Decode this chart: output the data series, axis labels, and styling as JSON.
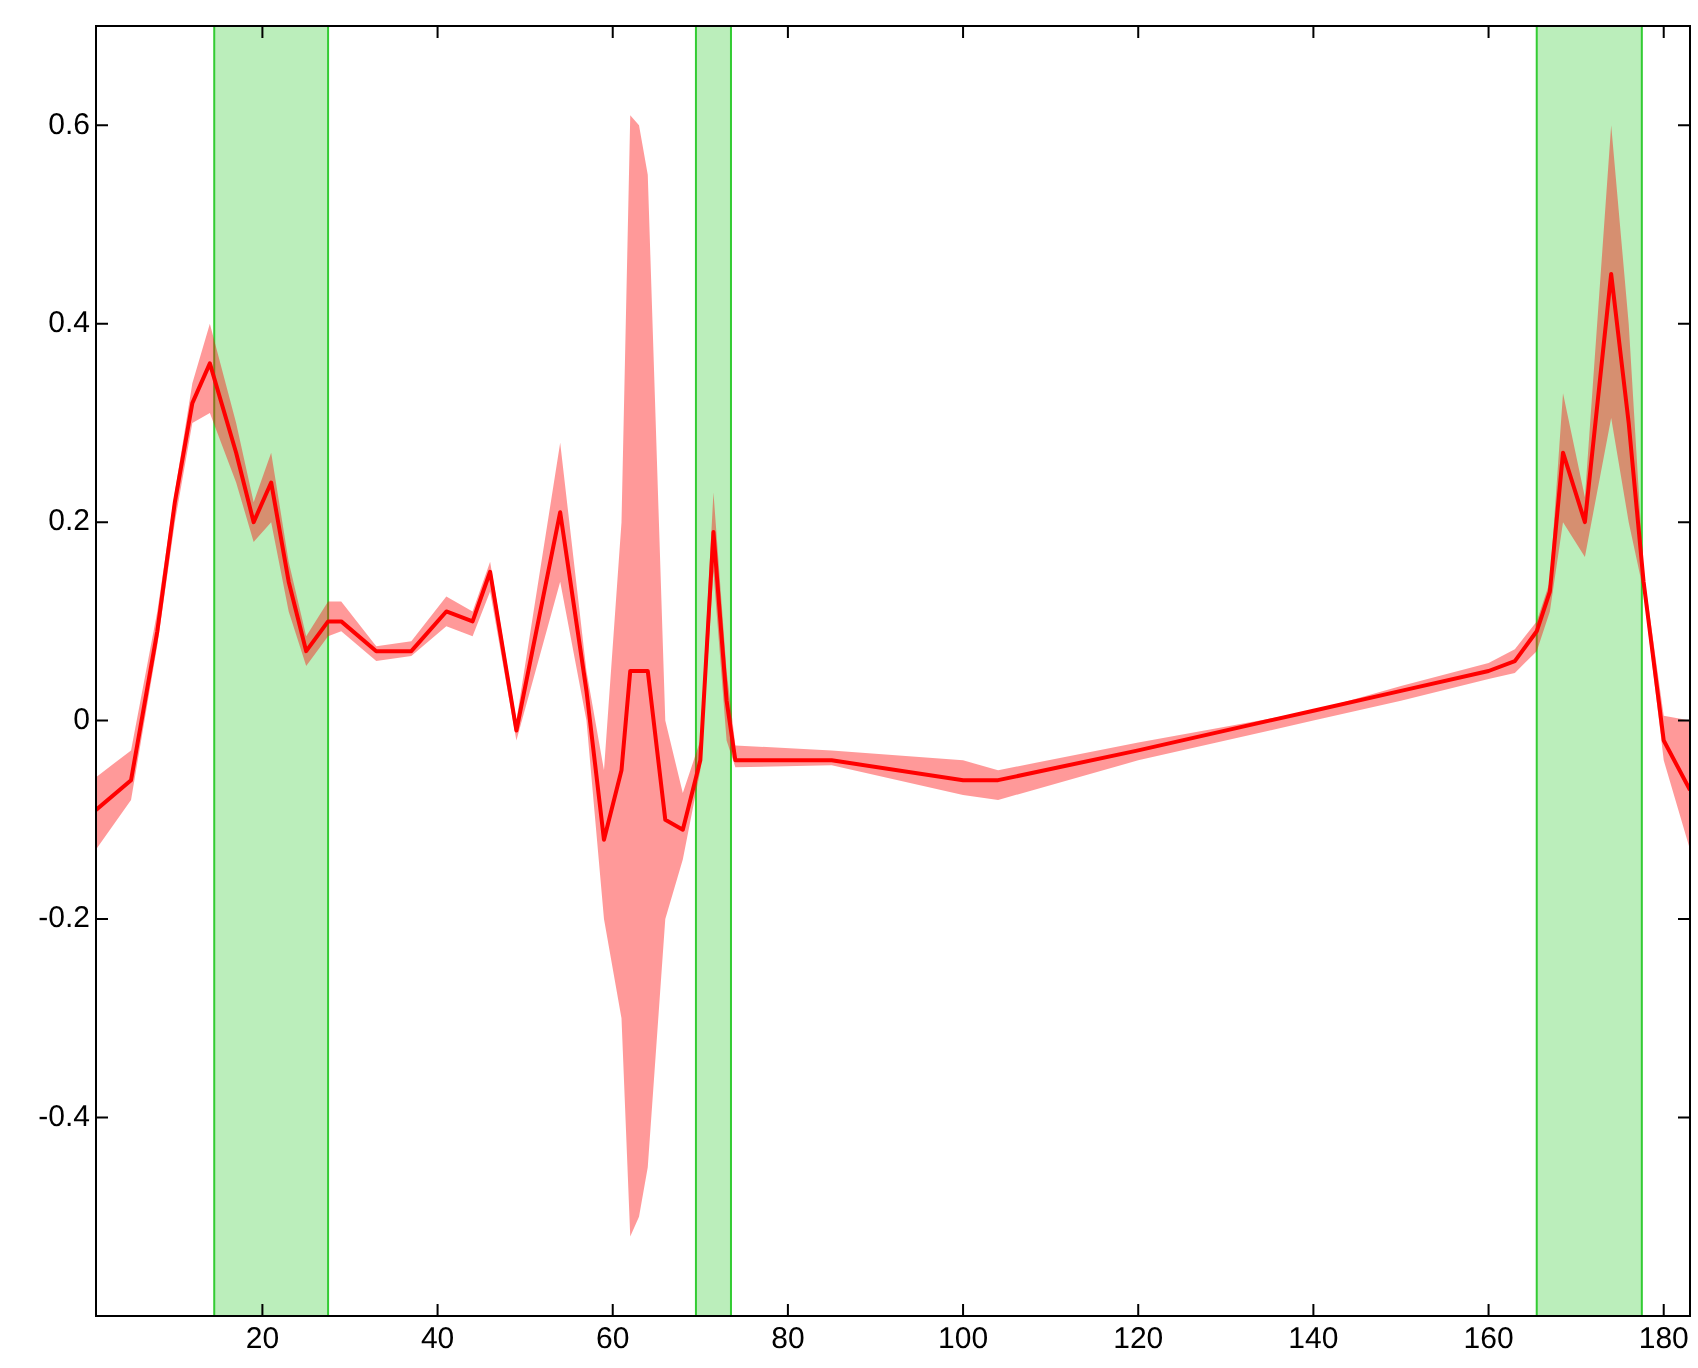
{
  "chart_data": {
    "type": "line",
    "x": [
      1,
      5,
      8,
      10,
      12,
      14,
      17,
      19,
      21,
      23,
      25,
      27.5,
      29,
      33,
      37,
      41,
      44,
      46,
      49,
      54,
      57,
      59,
      61,
      62,
      63,
      64,
      66,
      68,
      70,
      71.5,
      73,
      74,
      85,
      100,
      104,
      120,
      140,
      150,
      160,
      163,
      165.5,
      167,
      168.5,
      171,
      174,
      176,
      177.7,
      180,
      183
    ],
    "series": [
      {
        "color": "#ff0000",
        "values": [
          -0.09,
          -0.06,
          0.09,
          0.22,
          0.32,
          0.36,
          0.27,
          0.2,
          0.24,
          0.14,
          0.07,
          0.1,
          0.1,
          0.07,
          0.07,
          0.11,
          0.1,
          0.15,
          -0.01,
          0.21,
          0.03,
          -0.12,
          -0.05,
          0.05,
          0.05,
          0.05,
          -0.1,
          -0.11,
          -0.04,
          0.19,
          0.02,
          -0.04,
          -0.04,
          -0.06,
          -0.06,
          -0.03,
          0.01,
          0.03,
          0.05,
          0.06,
          0.09,
          0.13,
          0.27,
          0.2,
          0.45,
          0.3,
          0.14,
          -0.02,
          -0.07
        ],
        "lower": [
          -0.13,
          -0.08,
          0.076,
          0.2,
          0.3,
          0.31,
          0.24,
          0.18,
          0.2,
          0.11,
          0.055,
          0.085,
          0.09,
          0.06,
          0.065,
          0.095,
          0.085,
          0.13,
          -0.02,
          0.14,
          0.0,
          -0.2,
          -0.3,
          -0.52,
          -0.5,
          -0.45,
          -0.2,
          -0.14,
          -0.05,
          0.15,
          -0.02,
          -0.047,
          -0.045,
          -0.075,
          -0.08,
          -0.04,
          0.0,
          0.02,
          0.042,
          0.048,
          0.07,
          0.11,
          0.2,
          0.165,
          0.305,
          0.2,
          0.13,
          -0.04,
          -0.13
        ],
        "upper": [
          -0.057,
          -0.03,
          0.11,
          0.23,
          0.34,
          0.4,
          0.3,
          0.22,
          0.27,
          0.16,
          0.085,
          0.12,
          0.12,
          0.075,
          0.08,
          0.125,
          0.11,
          0.16,
          0.0,
          0.28,
          0.05,
          -0.05,
          0.2,
          0.61,
          0.6,
          0.55,
          0.0,
          -0.073,
          -0.02,
          0.23,
          0.05,
          -0.025,
          -0.03,
          -0.04,
          -0.05,
          -0.022,
          0.01,
          0.035,
          0.058,
          0.072,
          0.1,
          0.14,
          0.33,
          0.225,
          0.6,
          0.4,
          0.15,
          0.005,
          0.0
        ]
      }
    ],
    "xlim": [
      1,
      183
    ],
    "xticks": [
      20,
      40,
      60,
      80,
      100,
      120,
      140,
      160,
      180
    ],
    "ylim": [
      -0.6,
      0.7
    ],
    "yticks": [
      -0.4,
      -0.2,
      0,
      0.2,
      0.4,
      0.6
    ],
    "bands": [
      {
        "axis": "x",
        "from": 14.5,
        "to": 27.5,
        "color": "#33cc33"
      },
      {
        "axis": "x",
        "from": 69.5,
        "to": 73.5,
        "color": "#33cc33"
      },
      {
        "axis": "x",
        "from": 165.5,
        "to": 177.5,
        "color": "#33cc33"
      }
    ],
    "grid": false,
    "legend": false,
    "marker": "none",
    "line_style": "solid"
  }
}
